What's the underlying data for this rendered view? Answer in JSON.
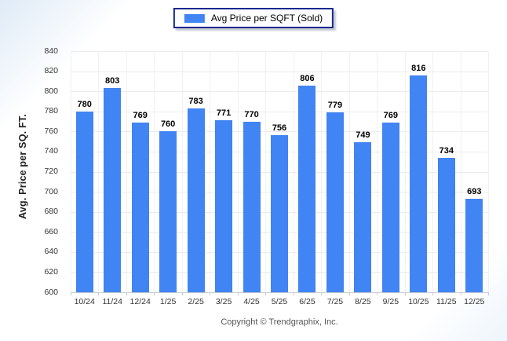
{
  "legend": {
    "label": "Avg Price per SQFT (Sold)"
  },
  "footer": {
    "text": "Copyright © Trendgraphix, Inc."
  },
  "colors": {
    "bar": "#4184F3",
    "legend_border": "#172890",
    "gridline": "#ECECEC",
    "vertical_gridline": "#F1F1F1",
    "axis_line": "#C6CCD2",
    "tick_label": "#333333",
    "value_label": "#000000",
    "axis_title": "#222222",
    "footer_text": "#555555"
  },
  "chart_data": {
    "type": "bar",
    "title": "",
    "xlabel": "",
    "ylabel": "Avg. Price per SQ. FT.",
    "categories": [
      "10/24",
      "11/24",
      "12/24",
      "1/25",
      "2/25",
      "3/25",
      "4/25",
      "5/25",
      "6/25",
      "7/25",
      "8/25",
      "9/25",
      "10/25",
      "11/25",
      "12/25"
    ],
    "values": [
      780,
      803,
      769,
      760,
      783,
      771,
      770,
      756,
      806,
      779,
      749,
      769,
      816,
      734,
      693
    ],
    "series_name": "Avg Price per SQFT (Sold)",
    "ylim": [
      600,
      840
    ],
    "ytick_step": 20,
    "grid": true,
    "value_labels": true,
    "legend_position": "top-center"
  }
}
